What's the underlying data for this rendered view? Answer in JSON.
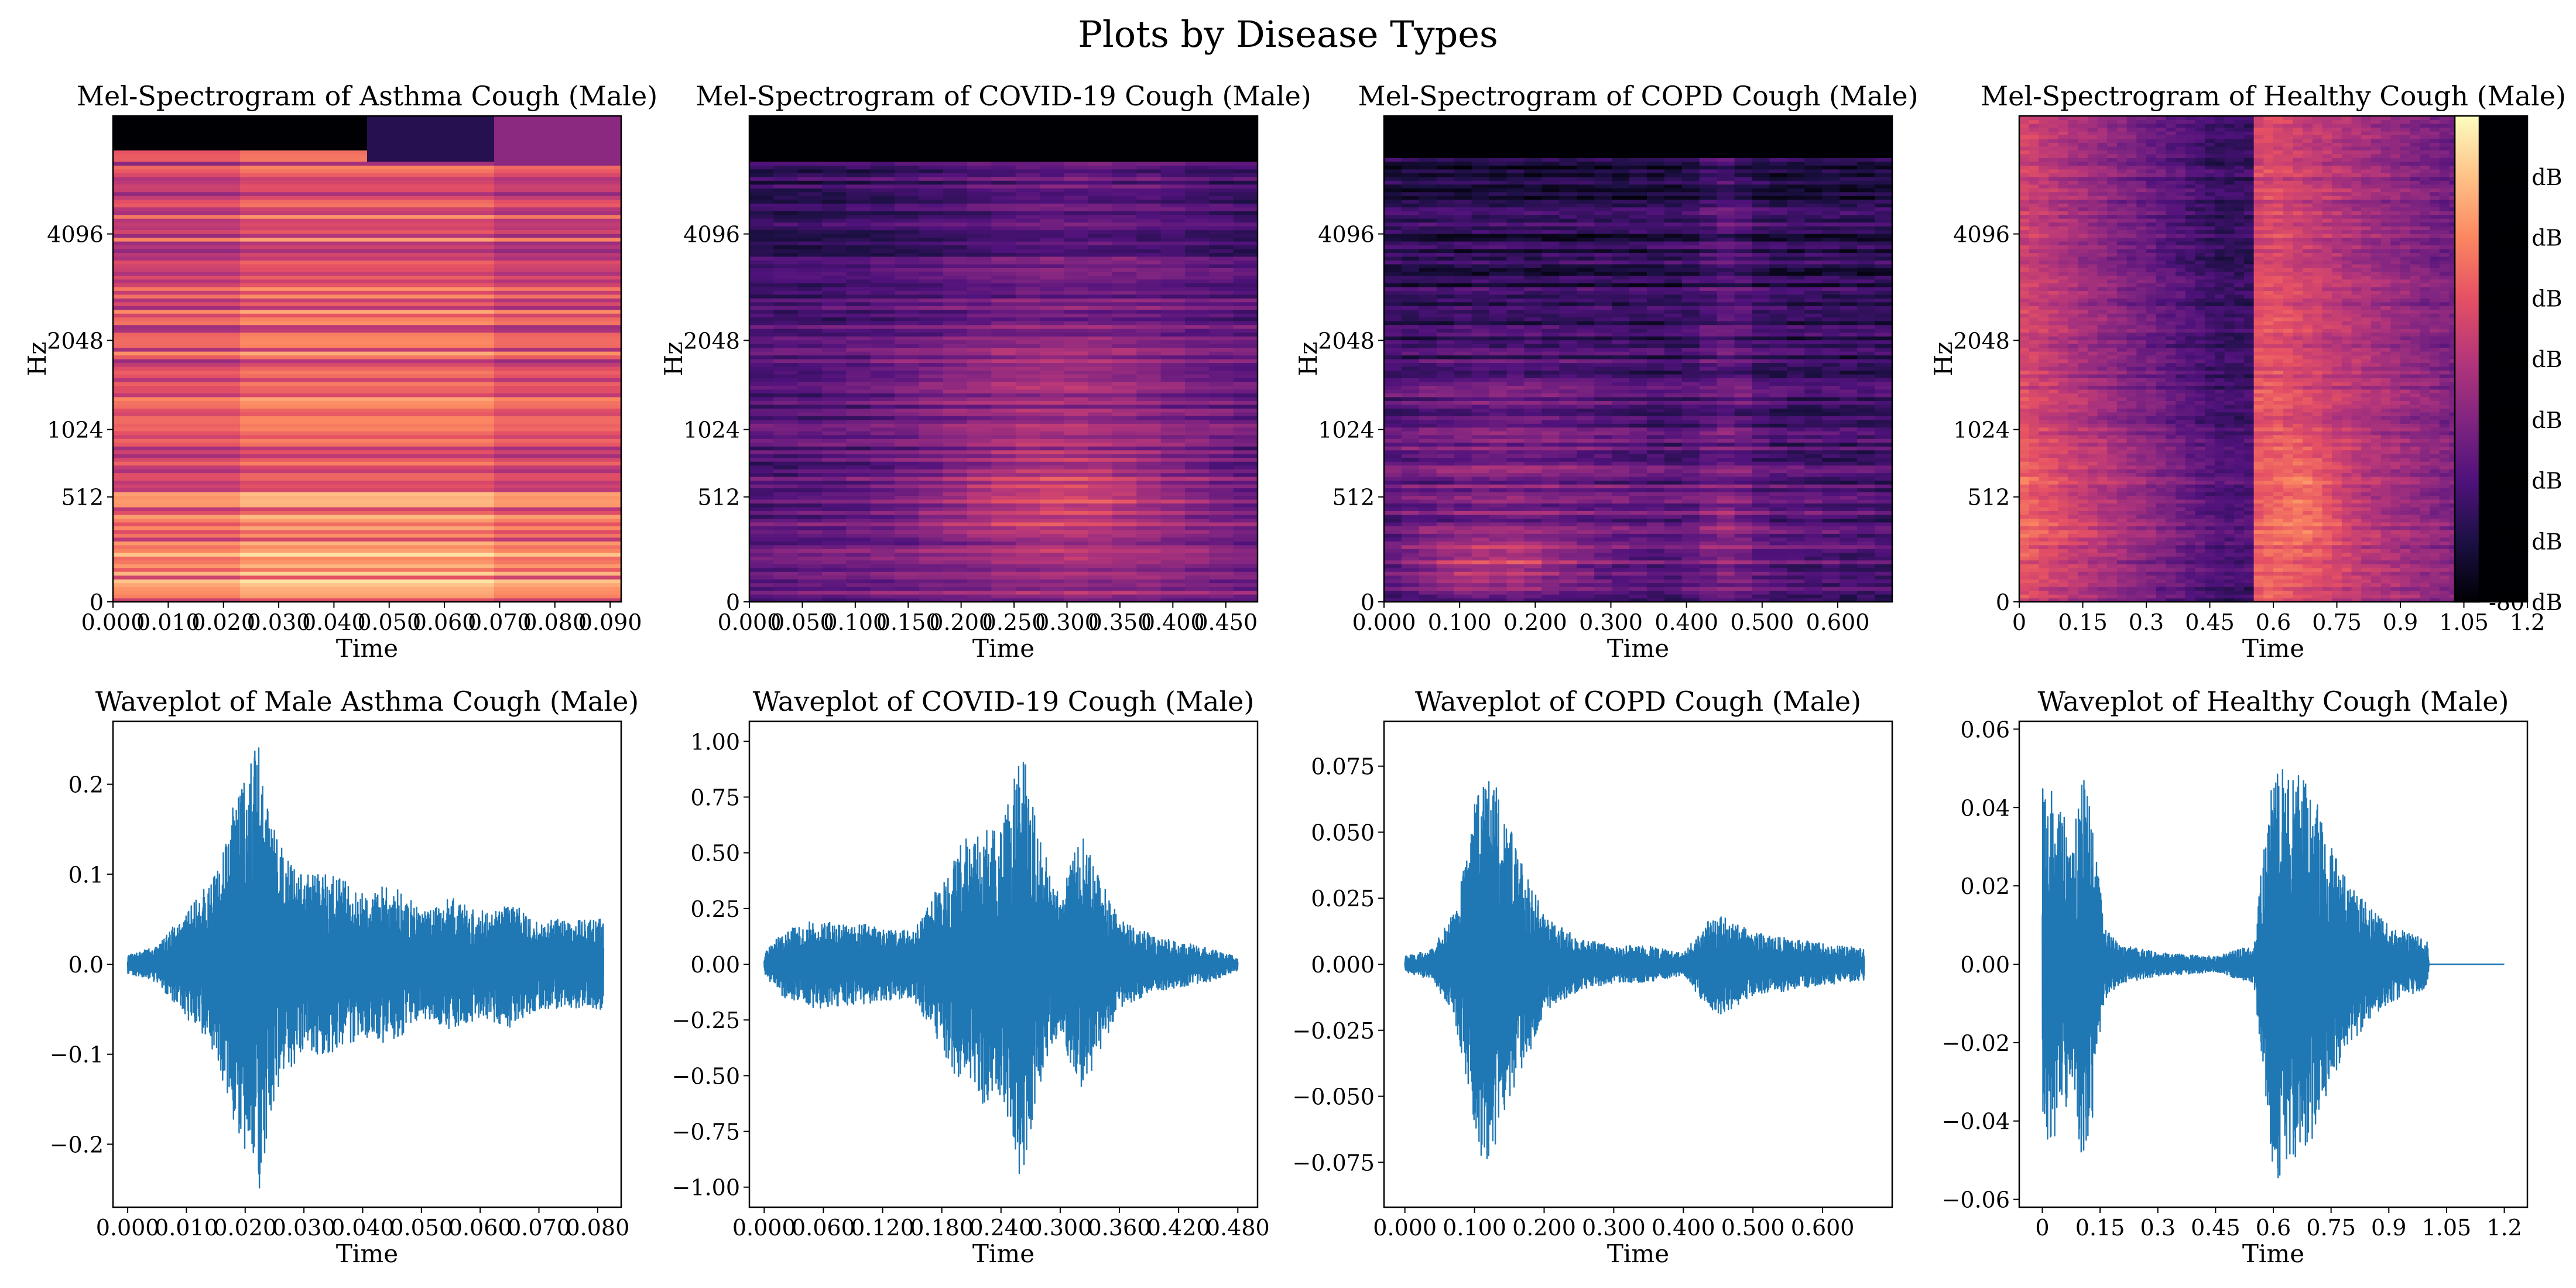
{
  "suptitle": "Plots by Disease Types",
  "colors": {
    "wave": "#1f77b4"
  },
  "colormap": "magma",
  "chart_data": [
    {
      "type": "heatmap",
      "title": "Mel-Spectrogram of Asthma Cough (Male)",
      "xlabel": "Time",
      "ylabel": "Hz",
      "xlim": [
        0,
        0.092
      ],
      "xticks": [
        0,
        0.01,
        0.02,
        0.03,
        0.04,
        0.05,
        0.06,
        0.07,
        0.08,
        0.09
      ],
      "xtick_labels": [
        "0.000",
        "0.010",
        "0.020",
        "0.030",
        "0.040",
        "0.050",
        "0.060",
        "0.070",
        "0.080",
        "0.090"
      ],
      "yticks": [
        0,
        512,
        1024,
        2048,
        4096
      ],
      "value_range_db": [
        -80,
        0
      ],
      "time_frames": 4,
      "mel_bins": 128
    },
    {
      "type": "heatmap",
      "title": "Mel-Spectrogram of COVID-19 Cough (Male)",
      "xlabel": "Time",
      "ylabel": "Hz",
      "xlim": [
        0,
        0.48
      ],
      "xticks": [
        0,
        0.05,
        0.1,
        0.15,
        0.2,
        0.25,
        0.3,
        0.35,
        0.4,
        0.45
      ],
      "xtick_labels": [
        "0.000",
        "0.050",
        "0.100",
        "0.150",
        "0.200",
        "0.250",
        "0.300",
        "0.350",
        "0.400",
        "0.450"
      ],
      "yticks": [
        0,
        512,
        1024,
        2048,
        4096
      ],
      "value_range_db": [
        -80,
        0
      ],
      "time_frames": 21,
      "mel_bins": 128
    },
    {
      "type": "heatmap",
      "title": "Mel-Spectrogram of COPD Cough (Male)",
      "xlabel": "Time",
      "ylabel": "Hz",
      "xlim": [
        0,
        0.672
      ],
      "xticks": [
        0,
        0.1,
        0.2,
        0.3,
        0.4,
        0.5,
        0.6
      ],
      "xtick_labels": [
        "0.000",
        "0.100",
        "0.200",
        "0.300",
        "0.400",
        "0.500",
        "0.600"
      ],
      "yticks": [
        0,
        512,
        1024,
        2048,
        4096
      ],
      "value_range_db": [
        -80,
        0
      ],
      "time_frames": 29,
      "mel_bins": 128
    },
    {
      "type": "heatmap",
      "title": "Mel-Spectrogram of Healthy Cough (Male)",
      "xlabel": "Time",
      "ylabel": "Hz",
      "xlim": [
        0,
        1.2
      ],
      "xticks": [
        0,
        0.15,
        0.3,
        0.45,
        0.6,
        0.75,
        0.9,
        1.05,
        1.2
      ],
      "xtick_labels": [
        "0",
        "0.15",
        "0.3",
        "0.45",
        "0.6",
        "0.75",
        "0.9",
        "1.05",
        "1.2"
      ],
      "yticks": [
        0,
        512,
        1024,
        2048,
        4096
      ],
      "value_range_db": [
        -80,
        0
      ],
      "time_frames": 52,
      "mel_bins": 128,
      "colorbar": {
        "labels": [
          "-10 dB",
          "-20 dB",
          "-30 dB",
          "-40 dB",
          "-50 dB",
          "-60 dB",
          "-70 dB",
          "-80 dB"
        ],
        "values": [
          -10,
          -20,
          -30,
          -40,
          -50,
          -60,
          -70,
          -80
        ],
        "range": [
          -80,
          0
        ]
      }
    },
    {
      "type": "line",
      "title": "Waveplot of Male Asthma Cough (Male)",
      "xlabel": "Time",
      "xlim": [
        -0.0025,
        0.084
      ],
      "ylim": [
        -0.27,
        0.27
      ],
      "duration": 0.081,
      "xticks": [
        0,
        0.01,
        0.02,
        0.03,
        0.04,
        0.05,
        0.06,
        0.07,
        0.08
      ],
      "xtick_labels": [
        "0.000",
        "0.010",
        "0.020",
        "0.030",
        "0.040",
        "0.050",
        "0.060",
        "0.070",
        "0.080"
      ],
      "yticks": [
        0.2,
        0.1,
        0.0,
        -0.1,
        -0.2
      ],
      "ytick_labels": [
        "0.2",
        "0.1",
        "0.0",
        "−0.1",
        "−0.2"
      ],
      "envelope": [
        [
          0,
          0.01
        ],
        [
          0.005,
          0.02
        ],
        [
          0.01,
          0.06
        ],
        [
          0.015,
          0.1
        ],
        [
          0.018,
          0.18
        ],
        [
          0.0225,
          0.25
        ],
        [
          0.025,
          0.15
        ],
        [
          0.027,
          0.12
        ],
        [
          0.03,
          0.1
        ],
        [
          0.035,
          0.1
        ],
        [
          0.04,
          0.08
        ],
        [
          0.045,
          0.09
        ],
        [
          0.05,
          0.06
        ],
        [
          0.055,
          0.075
        ],
        [
          0.06,
          0.06
        ],
        [
          0.065,
          0.07
        ],
        [
          0.07,
          0.05
        ],
        [
          0.075,
          0.05
        ],
        [
          0.081,
          0.05
        ]
      ]
    },
    {
      "type": "line",
      "title": "Waveplot of COVID-19 Cough (Male)",
      "xlabel": "Time",
      "xlim": [
        -0.015,
        0.5
      ],
      "ylim": [
        -1.09,
        1.09
      ],
      "duration": 0.48,
      "xticks": [
        0,
        0.06,
        0.12,
        0.18,
        0.24,
        0.3,
        0.36,
        0.42,
        0.48
      ],
      "xtick_labels": [
        "0.000",
        "0.060",
        "0.120",
        "0.180",
        "0.240",
        "0.300",
        "0.360",
        "0.420",
        "0.480"
      ],
      "yticks": [
        1.0,
        0.75,
        0.5,
        0.25,
        0.0,
        -0.25,
        -0.5,
        -0.75,
        -1.0
      ],
      "ytick_labels": [
        "1.00",
        "0.75",
        "0.50",
        "0.25",
        "0.00",
        "−0.25",
        "−0.50",
        "−0.75",
        "−1.00"
      ],
      "envelope": [
        [
          0,
          0.05
        ],
        [
          0.02,
          0.15
        ],
        [
          0.05,
          0.2
        ],
        [
          0.1,
          0.18
        ],
        [
          0.15,
          0.15
        ],
        [
          0.17,
          0.3
        ],
        [
          0.2,
          0.55
        ],
        [
          0.22,
          0.65
        ],
        [
          0.24,
          0.6
        ],
        [
          0.26,
          1.0
        ],
        [
          0.28,
          0.55
        ],
        [
          0.3,
          0.3
        ],
        [
          0.32,
          0.6
        ],
        [
          0.34,
          0.4
        ],
        [
          0.36,
          0.2
        ],
        [
          0.4,
          0.12
        ],
        [
          0.45,
          0.08
        ],
        [
          0.48,
          0.03
        ]
      ]
    },
    {
      "type": "line",
      "title": "Waveplot of COPD Cough (Male)",
      "xlabel": "Time",
      "xlim": [
        -0.03,
        0.7
      ],
      "ylim": [
        -0.092,
        0.092
      ],
      "duration": 0.66,
      "xticks": [
        0,
        0.1,
        0.2,
        0.3,
        0.4,
        0.5,
        0.6
      ],
      "xtick_labels": [
        "0.000",
        "0.100",
        "0.200",
        "0.300",
        "0.400",
        "0.500",
        "0.600"
      ],
      "yticks": [
        0.075,
        0.05,
        0.025,
        0.0,
        -0.025,
        -0.05,
        -0.075
      ],
      "ytick_labels": [
        "0.075",
        "0.050",
        "0.025",
        "0.000",
        "−0.025",
        "−0.050",
        "−0.075"
      ],
      "envelope": [
        [
          0,
          0.003
        ],
        [
          0.04,
          0.006
        ],
        [
          0.07,
          0.02
        ],
        [
          0.09,
          0.045
        ],
        [
          0.115,
          0.083
        ],
        [
          0.14,
          0.06
        ],
        [
          0.17,
          0.04
        ],
        [
          0.2,
          0.018
        ],
        [
          0.25,
          0.01
        ],
        [
          0.3,
          0.007
        ],
        [
          0.35,
          0.007
        ],
        [
          0.4,
          0.004
        ],
        [
          0.43,
          0.015
        ],
        [
          0.45,
          0.02
        ],
        [
          0.5,
          0.012
        ],
        [
          0.55,
          0.01
        ],
        [
          0.6,
          0.008
        ],
        [
          0.66,
          0.006
        ]
      ]
    },
    {
      "type": "line",
      "title": "Waveplot of Healthy Cough (Male)",
      "xlabel": "Time",
      "xlim": [
        -0.06,
        1.26
      ],
      "ylim": [
        -0.062,
        0.062
      ],
      "duration": 1.2,
      "xticks": [
        0,
        0.15,
        0.3,
        0.45,
        0.6,
        0.75,
        0.9,
        1.05,
        1.2
      ],
      "xtick_labels": [
        "0",
        "0.15",
        "0.3",
        "0.45",
        "0.6",
        "0.75",
        "0.9",
        "1.05",
        "1.2"
      ],
      "yticks": [
        0.06,
        0.04,
        0.02,
        0.0,
        -0.02,
        -0.04,
        -0.06
      ],
      "ytick_labels": [
        "0.06",
        "0.04",
        "0.02",
        "0.00",
        "−0.02",
        "−0.04",
        "−0.06"
      ],
      "envelope": [
        [
          0,
          0.045
        ],
        [
          0.04,
          0.045
        ],
        [
          0.08,
          0.03
        ],
        [
          0.1,
          0.05
        ],
        [
          0.13,
          0.04
        ],
        [
          0.16,
          0.01
        ],
        [
          0.2,
          0.005
        ],
        [
          0.3,
          0.003
        ],
        [
          0.45,
          0.002
        ],
        [
          0.55,
          0.005
        ],
        [
          0.6,
          0.056
        ],
        [
          0.65,
          0.05
        ],
        [
          0.7,
          0.045
        ],
        [
          0.75,
          0.03
        ],
        [
          0.8,
          0.02
        ],
        [
          0.9,
          0.01
        ],
        [
          1.0,
          0.006
        ],
        [
          1.005,
          0
        ],
        [
          1.2,
          0
        ]
      ]
    }
  ]
}
